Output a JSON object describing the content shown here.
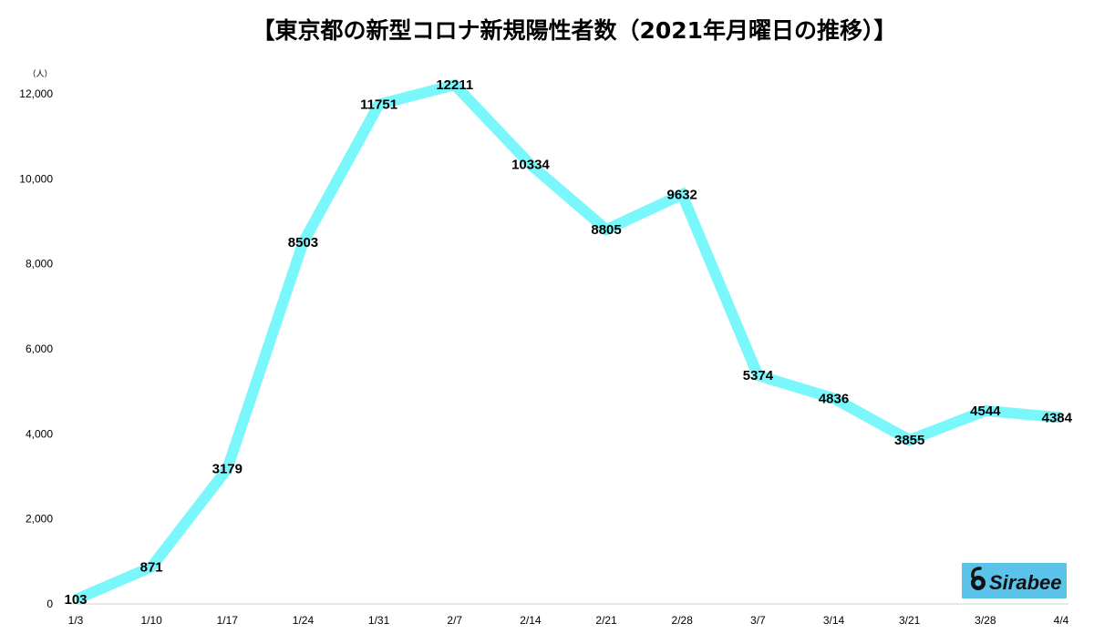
{
  "chart_data": {
    "type": "line",
    "title": "【東京都の新型コロナ新規陽性者数（2021年月曜日の推移）】",
    "y_unit": "（人）",
    "ylim": [
      0,
      12000
    ],
    "yticks": [
      "0",
      "2,000",
      "4,000",
      "6,000",
      "8,000",
      "10,000",
      "12,000"
    ],
    "ytick_values": [
      0,
      2000,
      4000,
      6000,
      8000,
      10000,
      12000
    ],
    "categories": [
      "1/3",
      "1/10",
      "1/17",
      "1/24",
      "1/31",
      "2/7",
      "2/14",
      "2/21",
      "2/28",
      "3/7",
      "3/14",
      "3/21",
      "3/28",
      "4/4"
    ],
    "values": [
      103,
      871,
      3179,
      8503,
      11751,
      12211,
      10334,
      8805,
      9632,
      5374,
      4836,
      3855,
      4544,
      4384
    ],
    "line_color": "#79f7fb",
    "grid": false,
    "legend": "none"
  },
  "brand": {
    "logo_text": "Sirabee",
    "logo_bg": "#5bc3ea"
  }
}
